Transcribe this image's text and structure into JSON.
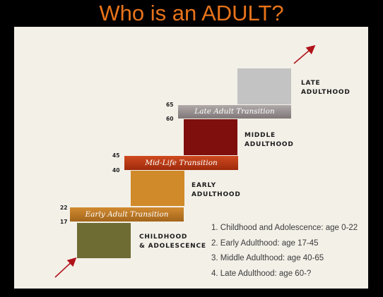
{
  "title": "Who is an ADULT?",
  "colors": {
    "title": "#e8731a",
    "childhood": "#6f6c33",
    "early_transition": "#c07b24",
    "early": "#d08a2a",
    "midlife_transition": "#bf3b15",
    "middle": "#7e0f0c",
    "late_transition": "#9b9494",
    "late": "#c3c3c3",
    "arrow": "#b0141a"
  },
  "stages": {
    "childhood": [
      "CHILDHOOD",
      "& ADOLESCENCE"
    ],
    "early": [
      "EARLY",
      "ADULTHOOD"
    ],
    "middle": [
      "MIDDLE",
      "ADULTHOOD"
    ],
    "late": [
      "LATE",
      "ADULTHOOD"
    ]
  },
  "transitions": {
    "early": "Early Adult Transition",
    "midlife": "Mid-Life Transition",
    "late": "Late Adult Transition"
  },
  "ages": {
    "a17": "17",
    "a22": "22",
    "a40": "40",
    "a45": "45",
    "a60": "60",
    "a65": "65"
  },
  "legend": [
    "1. Childhood and Adolescence: age 0-22",
    "2. Early Adulthood: age 17-45",
    "3. Middle Adulthood: age 40-65",
    "4. Late Adulthood: age 60-?"
  ]
}
